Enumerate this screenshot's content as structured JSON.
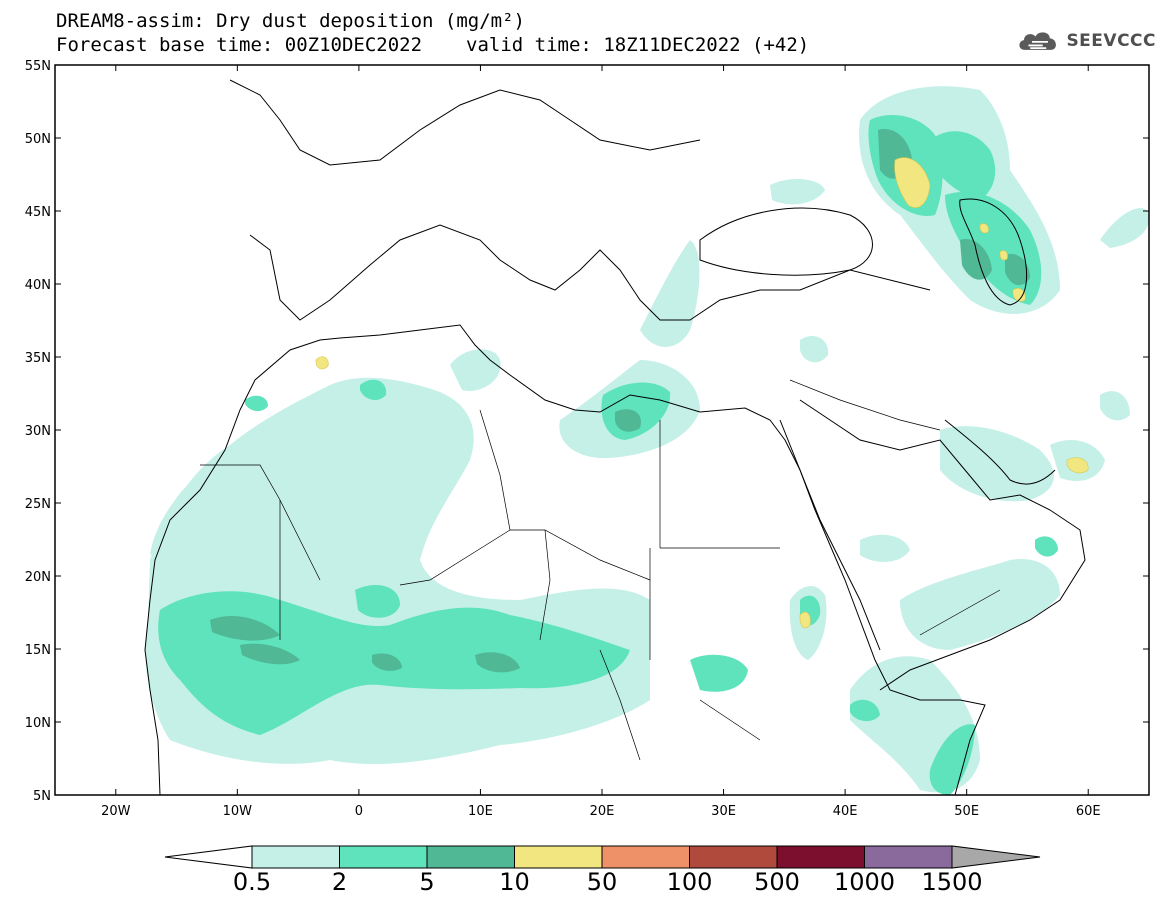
{
  "header": {
    "title": "DREAM8-assim: Dry dust deposition (mg/m²)",
    "base_time": "Forecast base time: 00Z10DEC2022",
    "valid_time": "valid time: 18Z11DEC2022 (+42)"
  },
  "logo": {
    "text": "SEEVCCC",
    "icon": "cloud-icon"
  },
  "map": {
    "lon_range": [
      -25,
      65
    ],
    "lat_range": [
      5,
      55
    ],
    "lon_ticks": [
      {
        "value": -20,
        "label": "20W"
      },
      {
        "value": -10,
        "label": "10W"
      },
      {
        "value": 0,
        "label": "0"
      },
      {
        "value": 10,
        "label": "10E"
      },
      {
        "value": 20,
        "label": "20E"
      },
      {
        "value": 30,
        "label": "30E"
      },
      {
        "value": 40,
        "label": "40E"
      },
      {
        "value": 50,
        "label": "50E"
      },
      {
        "value": 60,
        "label": "60E"
      }
    ],
    "lat_ticks": [
      {
        "value": 55,
        "label": "55N"
      },
      {
        "value": 50,
        "label": "50N"
      },
      {
        "value": 45,
        "label": "45N"
      },
      {
        "value": 40,
        "label": "40N"
      },
      {
        "value": 35,
        "label": "35N"
      },
      {
        "value": 30,
        "label": "30N"
      },
      {
        "value": 25,
        "label": "25N"
      },
      {
        "value": 20,
        "label": "20N"
      },
      {
        "value": 15,
        "label": "15N"
      },
      {
        "value": 10,
        "label": "10N"
      },
      {
        "value": 5,
        "label": "5N"
      }
    ]
  },
  "colorbar": {
    "levels": [
      "0.5",
      "2",
      "5",
      "10",
      "50",
      "100",
      "500",
      "1000",
      "1500"
    ],
    "colors": [
      "#c4f0e8",
      "#5ee3bc",
      "#50b894",
      "#f2e680",
      "#ee9068",
      "#b04a3c",
      "#7c0e2e",
      "#8a6a9c"
    ],
    "under_color": "#ffffff",
    "over_color": "#a8a8a8"
  }
}
